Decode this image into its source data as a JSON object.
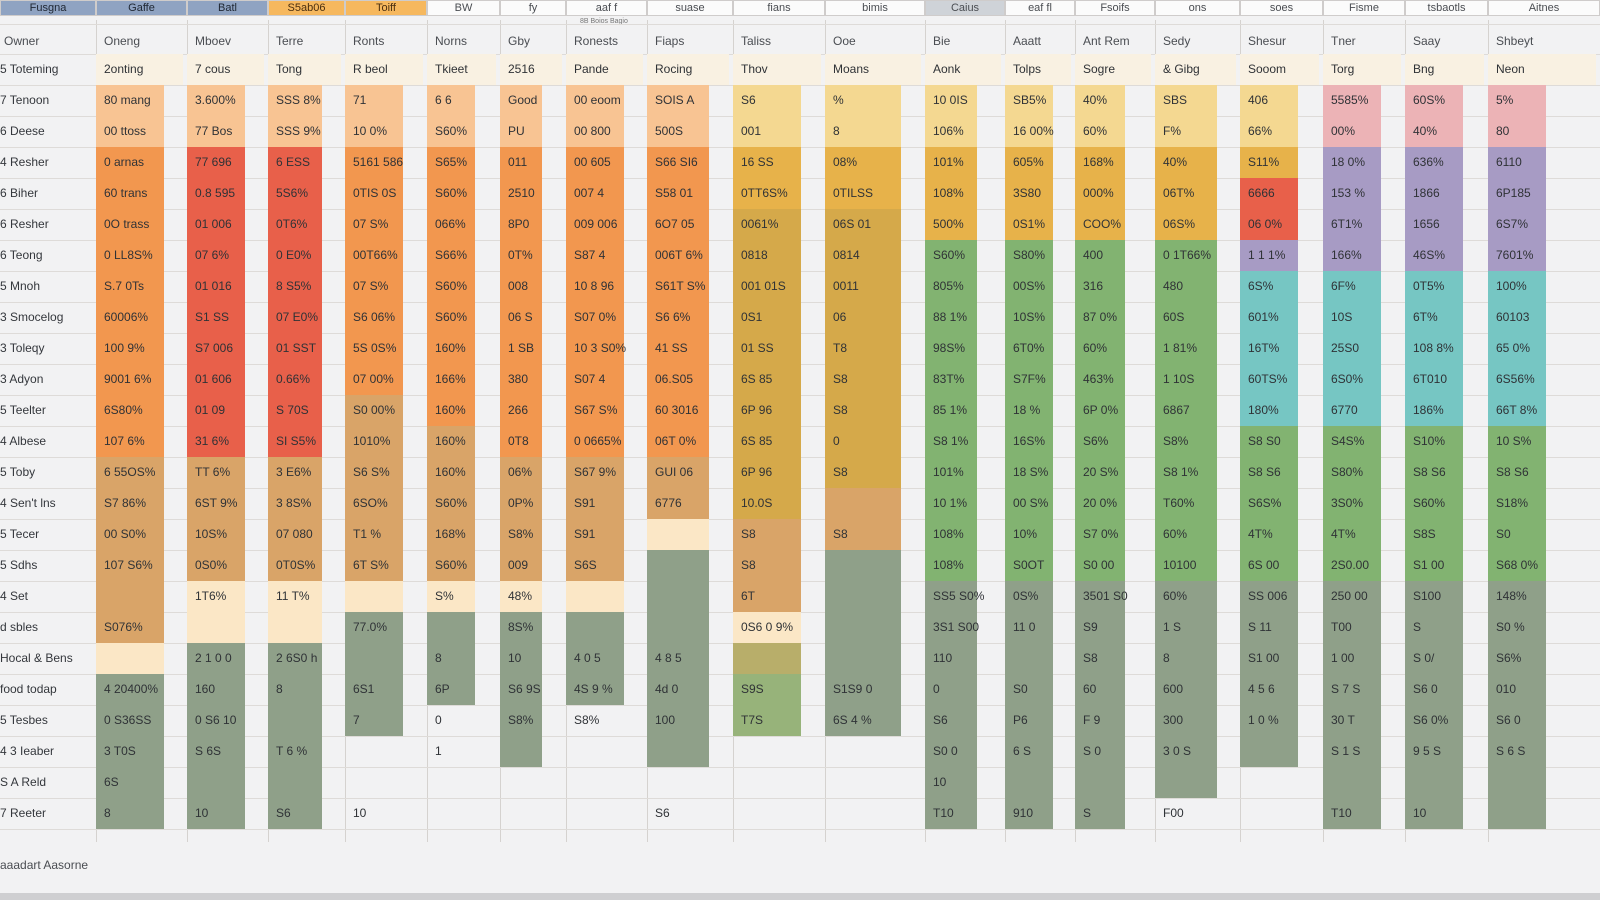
{
  "toolbar": {
    "tabs": [
      "Fusgna",
      "Gaffe",
      "Batl",
      "S5ab06",
      "Toiff",
      "BW",
      "fy",
      "aaf f",
      "suase",
      "fians",
      "bimis",
      "Caius",
      "eaf fl",
      "Fsoifs",
      "ons",
      "soes",
      "Fisme",
      "tsbaotls",
      "Aitnes"
    ]
  },
  "subheader_note": "8B Boios Bagio",
  "columns": [
    {
      "name": "Owner"
    },
    {
      "name": "Oneng"
    },
    {
      "name": "Mboev"
    },
    {
      "name": "Terre"
    },
    {
      "name": "Ronts"
    },
    {
      "name": "Norns"
    },
    {
      "name": "Gby"
    },
    {
      "name": "Ronests"
    },
    {
      "name": "Fiaps"
    },
    {
      "name": "Taliss"
    },
    {
      "name": "Ooe"
    },
    {
      "name": "Bie"
    },
    {
      "name": "Aaatt"
    },
    {
      "name": "Ant Rem"
    },
    {
      "name": "Sedy"
    },
    {
      "name": "Shesur"
    },
    {
      "name": "Tner"
    },
    {
      "name": "Saay"
    },
    {
      "name": "Shbeyt"
    }
  ],
  "colors": {
    "cream": "#fbe7c6",
    "peach": "#f8c493",
    "orange": "#f2974f",
    "red": "#e8604a",
    "tan": "#d9a468",
    "gold": "#e7b24a",
    "mustard": "#d5a94a",
    "olive": "#b8ae6a",
    "sage": "#97b37a",
    "green": "#82b371",
    "teal": "#76c6c3",
    "lavender": "#a79bc4",
    "pink": "#ecb3b6",
    "grey": "#8fa089",
    "yellow": "#f4d891"
  },
  "rows": [
    {
      "label": "5 Toteming",
      "cells": [
        "2onting",
        "7 cous",
        "Tong",
        "R beol",
        "Tkieet",
        "2516",
        "Pande",
        "Rocing",
        "Thov",
        "Moans",
        "Aonk",
        "Tolps",
        "Sogre",
        "& Gibg",
        "Sooom",
        "Torg",
        "Bng",
        "Neon"
      ]
    },
    {
      "label": "7 Tenoon",
      "cells": [
        "80 mang",
        "3.600%",
        "SSS 8%",
        "71",
        "6 6",
        "Good",
        "00 eoom",
        "SOIS A",
        "S6",
        "%",
        "10 0IS",
        "SB5%",
        "40%",
        "SBS",
        "406",
        "5585%",
        "60S%",
        "5%"
      ]
    },
    {
      "label": "6 Deese",
      "cells": [
        "00 ttoss",
        "77 Bos",
        "SSS 9%",
        "10 0%",
        "S60%",
        "PU",
        "00 800",
        "500S",
        "001",
        "8",
        "106%",
        "16 00%",
        "60%",
        "F%",
        "66%",
        "00%",
        "40%",
        "80"
      ]
    },
    {
      "label": "4 Resher",
      "cells": [
        "0 arnas",
        "77 696",
        "6 ESS",
        "5161 586",
        "S65%",
        "011",
        "00 605",
        "S66 SI6",
        "16 SS",
        "08%",
        "101%",
        "605%",
        "168%",
        "40%",
        "S11%",
        "18 0%",
        "636%",
        "6110"
      ]
    },
    {
      "label": "6 Biher",
      "cells": [
        "60 trans",
        "0.8 595",
        "5S6%",
        "0TIS 0S",
        "S60%",
        "2510",
        "007 4",
        "S58 01",
        "0TT6S%",
        "0TILSS",
        "108%",
        "3S80",
        "000%",
        "06T%",
        "6666",
        "153 %",
        "1866",
        "6P185"
      ]
    },
    {
      "label": "6 Resher",
      "cells": [
        "0O trass",
        "01 006",
        "0T6%",
        "07 S%",
        "066%",
        "8P0",
        "009 006",
        "6O7 05",
        "0061%",
        "06S 01",
        "500%",
        "0S1%",
        "COO%",
        "06S%",
        "06 0%",
        "6T1%",
        "1656",
        "6S7%"
      ]
    },
    {
      "label": "6 Teong",
      "cells": [
        "0 LL8S%",
        "07 6%",
        "0 E0%",
        "00T66%",
        "S66%",
        "0T%",
        "S87 4",
        "006T 6%",
        "0818",
        "0814",
        "S60%",
        "S80%",
        "400",
        "0 1T66%",
        "1 1 1%",
        "166%",
        "46S%",
        "7601%"
      ]
    },
    {
      "label": "5 Mnoh",
      "cells": [
        "S.7 0Ts",
        "01 016",
        "8 S5%",
        "07 S%",
        "S60%",
        "008",
        "10 8 96",
        "S61T S%",
        "001 01S",
        "0011",
        "805%",
        "00S%",
        "316",
        "480",
        "6S%",
        "6F%",
        "0T5%",
        "100%"
      ]
    },
    {
      "label": "3 Smocelog",
      "cells": [
        "60006%",
        "S1 SS",
        "07 E0%",
        "S6 06%",
        "S60%",
        "06 S",
        "S07 0%",
        "S6 6%",
        "0S1",
        "06",
        "88 1%",
        "10S%",
        "87 0%",
        "60S",
        "601%",
        "10S",
        "6T%",
        "60103"
      ]
    },
    {
      "label": "3 Toleqy",
      "cells": [
        "100 9%",
        "S7 006",
        "01 SST",
        "5S 0S%",
        "160%",
        "1 SB",
        "10 3 S0%",
        "41 SS",
        "01 SS",
        "T8",
        "98S%",
        "6T0%",
        "60%",
        "1 81%",
        "16T%",
        "25S0",
        "108 8%",
        "65 0%"
      ]
    },
    {
      "label": "3 Adyon",
      "cells": [
        "9001 6%",
        "01 606",
        "0.66%",
        "07 00%",
        "166%",
        "380",
        "S07 4",
        "06.S05",
        "6S 85",
        "S8",
        "83T%",
        "S7F%",
        "463%",
        "1 10S",
        "60TS%",
        "6S0%",
        "6T010",
        "6S56%"
      ]
    },
    {
      "label": "5 Teelter",
      "cells": [
        "6S80%",
        "01 09",
        "S 70S",
        "S0 00%",
        "160%",
        "266",
        "S67 S%",
        "60 3016",
        "6P 96",
        "S8",
        "85 1%",
        "18 %",
        "6P 0%",
        "6867",
        "180%",
        "6770",
        "186%",
        "66T 8%"
      ]
    },
    {
      "label": "4 Albese",
      "cells": [
        "107 6%",
        "31 6%",
        "SI S5%",
        "1010%",
        "160%",
        "0T8",
        "0 0665%",
        "06T 0%",
        "6S 85",
        "0",
        "S8 1%",
        "16S%",
        "S6%",
        "S8%",
        "S8 S0",
        "S4S%",
        "S10%",
        "10 S%"
      ]
    },
    {
      "label": "5 Toby",
      "cells": [
        "6 55OS%",
        "TT 6%",
        "3 E6%",
        "S6 S%",
        "160%",
        "06%",
        "S67 9%",
        "GUI 06",
        "6P 96",
        "S8",
        "101%",
        "18 S%",
        "20 S%",
        "S8 1%",
        "S8 S6",
        "S80%",
        "S8 S6",
        "S8 S6"
      ]
    },
    {
      "label": "4 Sen't lns",
      "cells": [
        "S7 86%",
        "6ST 9%",
        "3 8S%",
        "6SO%",
        "S60%",
        "0P%",
        "S91",
        "6776",
        "10.0S",
        "",
        "10 1%",
        "00 S%",
        "20 0%",
        "T60%",
        "S6S%",
        "3S0%",
        "S60%",
        "S18%"
      ]
    },
    {
      "label": "5 Tecer",
      "cells": [
        "00 S0%",
        "10S%",
        "07 080",
        "T1 %",
        "168%",
        "S8%",
        "S91",
        "",
        "S8",
        "S8",
        "108%",
        "10%",
        "S7 0%",
        "60%",
        "4T%",
        "4T%",
        "S8S",
        "S0"
      ]
    },
    {
      "label": "5 Sdhs",
      "cells": [
        "107 S6%",
        "0S0%",
        "0T0S%",
        "6T S%",
        "S60%",
        "009",
        "S6S",
        "",
        "S8",
        "",
        "108%",
        "S0OT",
        "S0 00",
        "10100",
        "6S 00",
        "2S0.00",
        "S1 00",
        "S68 0%"
      ]
    },
    {
      "label": "4 Set",
      "cells": [
        "",
        "1T6%",
        "11 T%",
        "",
        "S%",
        "48%",
        "",
        "",
        "6T",
        "",
        "SS5 S0%",
        "0S%",
        "3501 S0",
        "60%",
        "SS 006",
        "250 00",
        "S100",
        "148%"
      ]
    },
    {
      "label": "d sbles",
      "cells": [
        "S076%",
        "",
        "",
        "77.0%",
        "",
        "8S%",
        "",
        "",
        "0S6 0 9%",
        "",
        "3S1 S00",
        "11 0",
        "S9",
        "1 S",
        "S 11",
        "T00",
        "S",
        "S0 %"
      ]
    },
    {
      "label": "Hocal & Bens",
      "cells": [
        "",
        "2 1 0 0",
        "2 6S0 h",
        "",
        "8",
        "10",
        "4 0 5",
        "4 8 5",
        "",
        "",
        "110",
        "",
        "S8",
        "8",
        "S1 00",
        "1 00",
        "S 0/",
        "S6%"
      ]
    },
    {
      "label": "food todap",
      "cells": [
        "4 20400%",
        "160",
        "8",
        "6S1",
        "6P",
        "S6 9S",
        "4S 9 %",
        "4d 0",
        "S9S",
        "S1S9 0",
        "0",
        "S0",
        "60",
        "600",
        "4 5 6",
        "S 7 S",
        "S6 0",
        "010"
      ]
    },
    {
      "label": "5 Tesbes",
      "cells": [
        "0 S36SS",
        "0 S6 10",
        "",
        "7",
        "0",
        "S8%",
        "S8%",
        "100",
        "T7S",
        "6S 4 %",
        "S6",
        "P6",
        "F 9",
        "300",
        "1 0 %",
        "30 T",
        "S6 0%",
        "S6 0"
      ]
    },
    {
      "label": "4 3 Ieaber",
      "cells": [
        "3 T0S",
        "S 6S",
        "T 6 %",
        "",
        "1",
        "",
        "",
        "",
        "",
        "",
        "S0 0",
        "6 S",
        "S 0",
        "3 0 S",
        "",
        "S 1 S",
        "9 5 S",
        "S 6 S"
      ]
    },
    {
      "label": "S A Reld",
      "cells": [
        "6S",
        "",
        "",
        "",
        "",
        "",
        "",
        "",
        "",
        "",
        "10",
        "",
        "",
        "",
        "",
        "",
        "",
        ""
      ]
    },
    {
      "label": "7 Reeter",
      "cells": [
        "8",
        "10",
        "S6",
        "10",
        "",
        "",
        "",
        "S6",
        "",
        "",
        "T10",
        "910",
        "S",
        "F00",
        "",
        "T10",
        "10",
        ""
      ]
    }
  ],
  "footer": "aaadart  Aasorne"
}
